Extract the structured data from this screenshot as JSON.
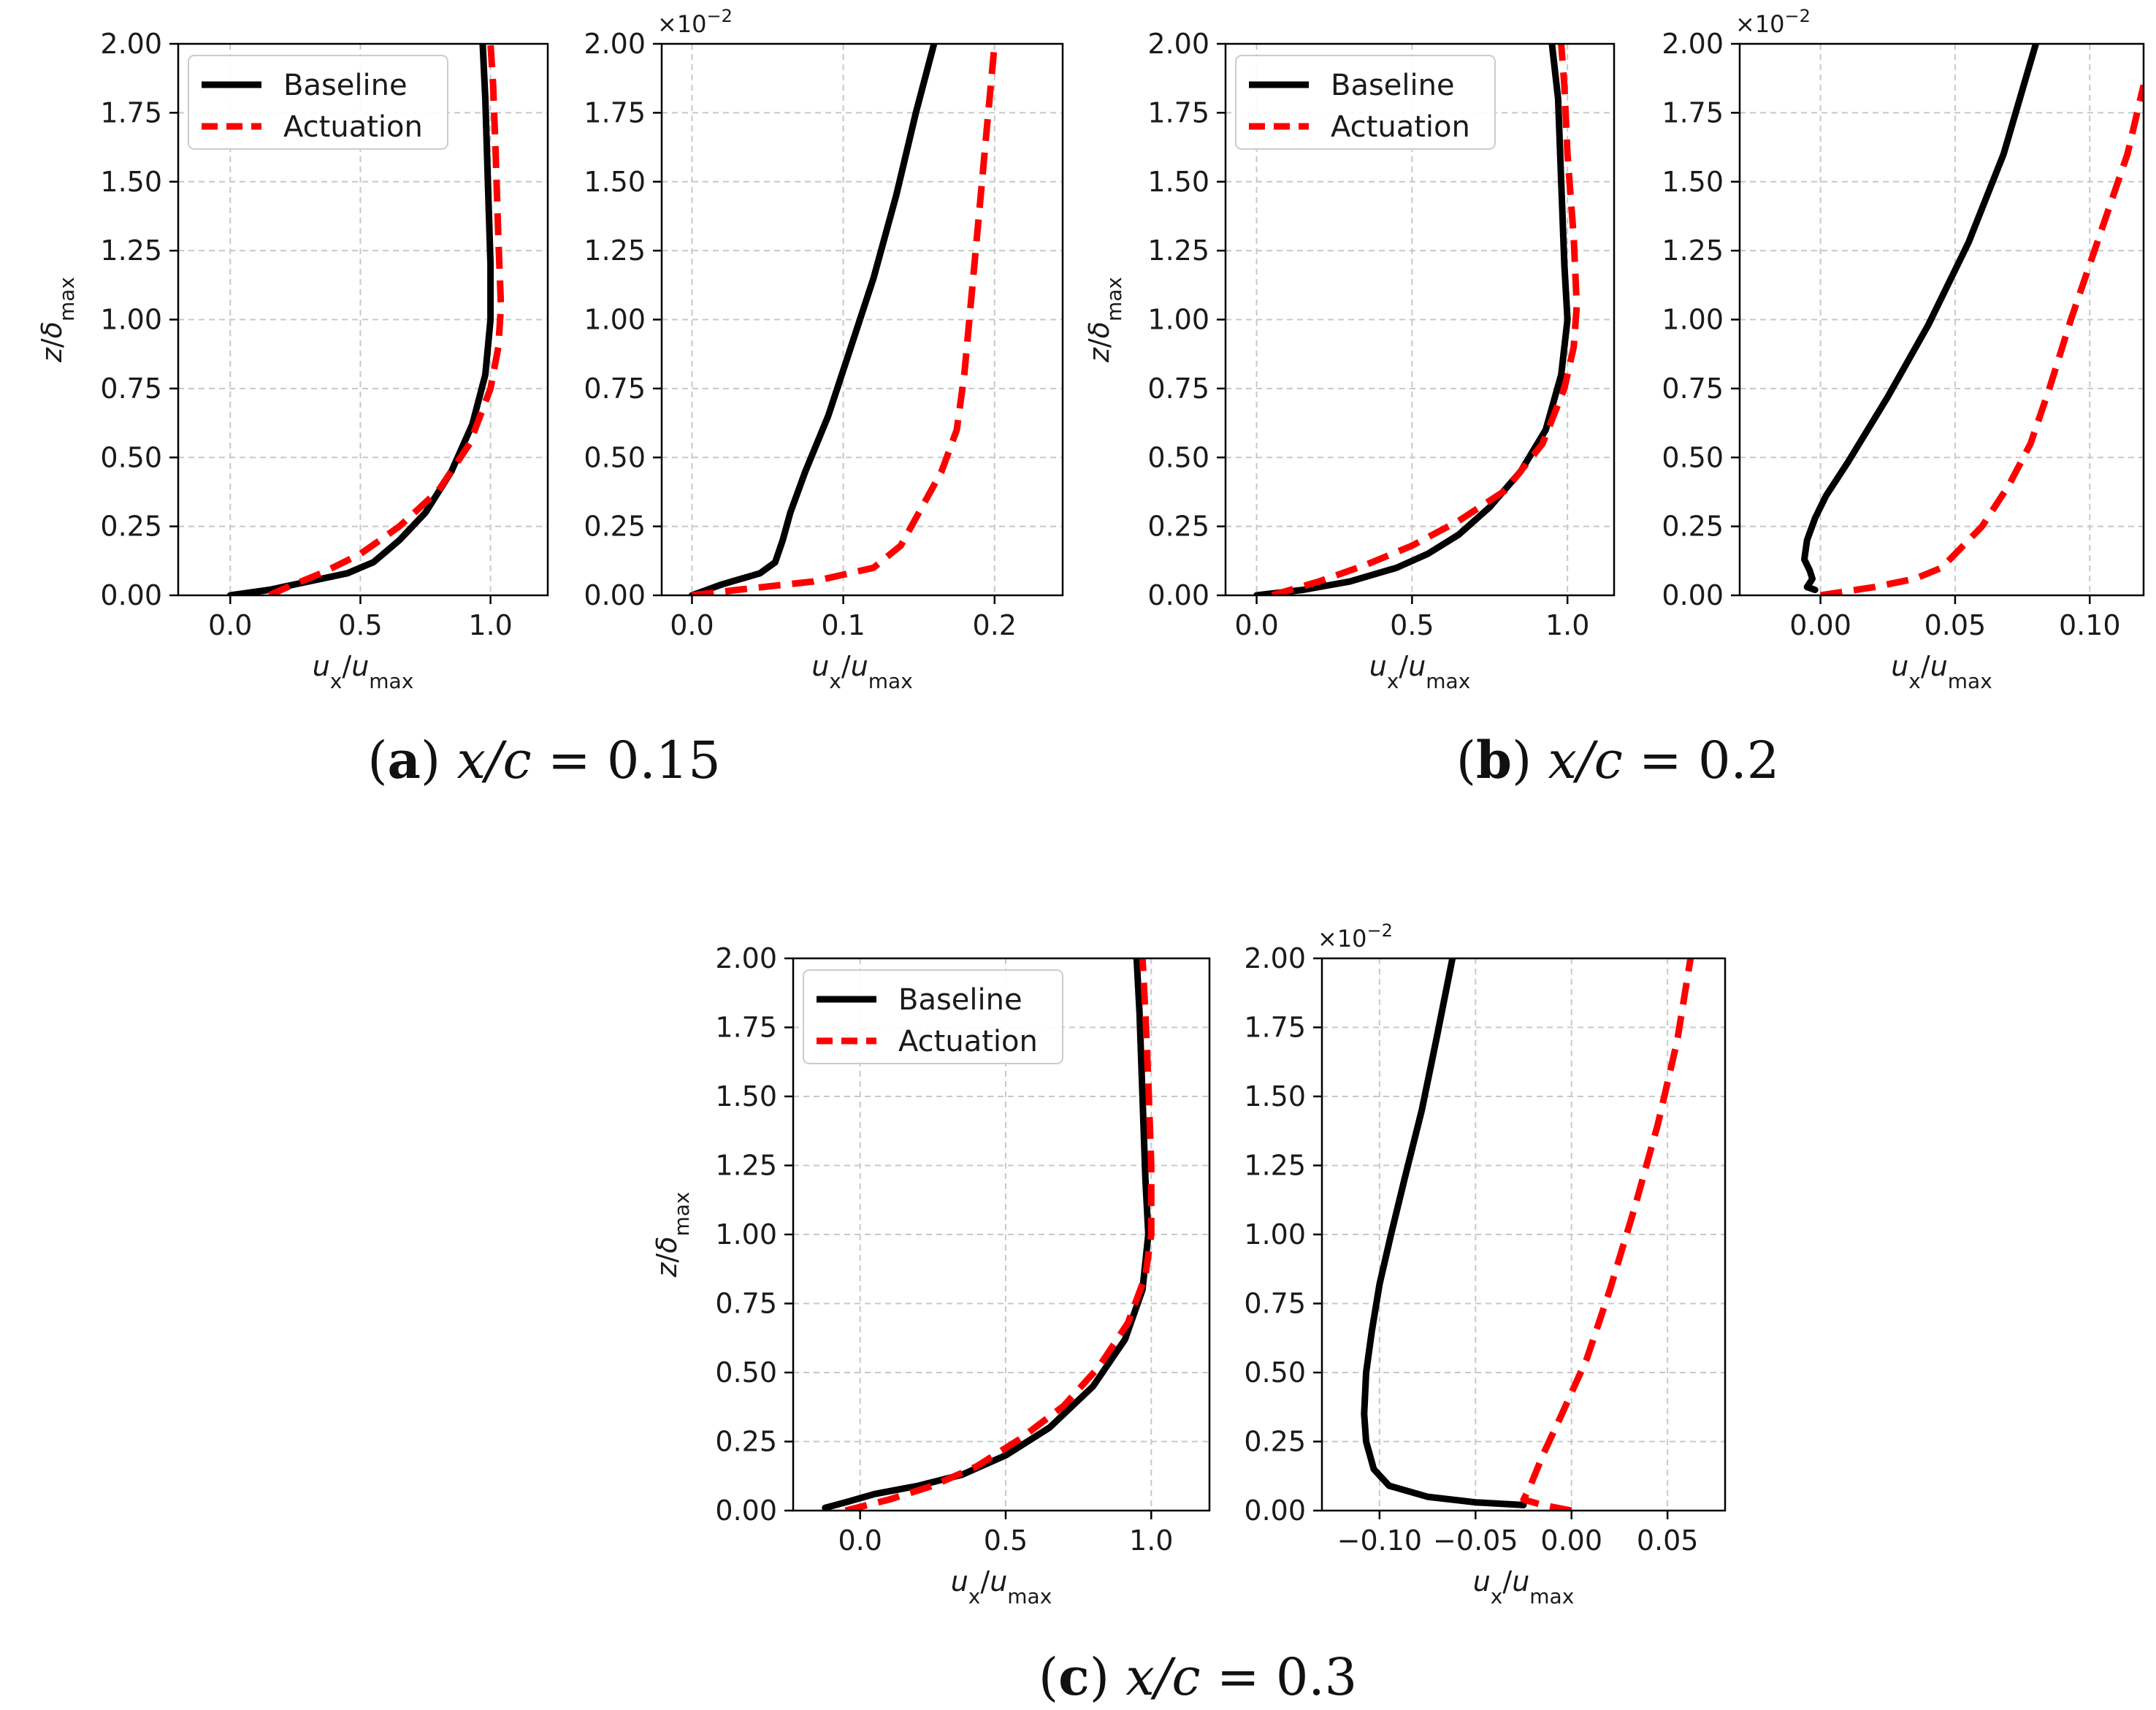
{
  "colors": {
    "baseline": "#000000",
    "actuation": "#ff0000",
    "grid": "#c8c8c8",
    "frame": "#000000"
  },
  "legend_entries": [
    "Baseline",
    "Actuation"
  ],
  "sci_multiplier": {
    "base": "×10",
    "exponent": "−2"
  },
  "panels": [
    {
      "letter": "a",
      "caption_prefix": "x/c",
      "caption_eq": "=",
      "caption_value": "0.15"
    },
    {
      "letter": "b",
      "caption_prefix": "x/c",
      "caption_eq": "=",
      "caption_value": "0.2"
    },
    {
      "letter": "c",
      "caption_prefix": "x/c",
      "caption_eq": "=",
      "caption_value": "0.3"
    }
  ],
  "chart_data": [
    {
      "id": "a-left",
      "panel": "a",
      "type": "line",
      "xlabel": "u_x/u_max",
      "ylabel": "z/δ_max",
      "xlim": [
        -0.2,
        1.22
      ],
      "ylim": [
        0,
        2
      ],
      "xticks": [
        {
          "v": 0,
          "label": "0.0"
        },
        {
          "v": 0.5,
          "label": "0.5"
        },
        {
          "v": 1.0,
          "label": "1.0"
        }
      ],
      "yticks": [
        {
          "v": 0,
          "label": "0.00"
        },
        {
          "v": 0.25,
          "label": "0.25"
        },
        {
          "v": 0.5,
          "label": "0.50"
        },
        {
          "v": 0.75,
          "label": "0.75"
        },
        {
          "v": 1.0,
          "label": "1.00"
        },
        {
          "v": 1.25,
          "label": "1.25"
        },
        {
          "v": 1.5,
          "label": "1.50"
        },
        {
          "v": 1.75,
          "label": "1.75"
        },
        {
          "v": 2.0,
          "label": "2.00"
        }
      ],
      "show_ylabel": true,
      "legend": "top-left",
      "sci": "",
      "series": [
        {
          "name": "Baseline",
          "x": [
            0.0,
            0.15,
            0.3,
            0.45,
            0.55,
            0.65,
            0.75,
            0.85,
            0.93,
            0.98,
            1.0,
            1.0,
            0.99,
            0.98,
            0.97
          ],
          "z": [
            0.0,
            0.02,
            0.05,
            0.08,
            0.12,
            0.2,
            0.3,
            0.45,
            0.62,
            0.8,
            1.0,
            1.2,
            1.5,
            1.8,
            2.0
          ]
        },
        {
          "name": "Actuation",
          "x": [
            0.15,
            0.22,
            0.35,
            0.5,
            0.65,
            0.8,
            0.92,
            1.0,
            1.03,
            1.04,
            1.03,
            1.02,
            1.01,
            1.0
          ],
          "z": [
            0.0,
            0.03,
            0.08,
            0.15,
            0.25,
            0.38,
            0.55,
            0.75,
            0.9,
            1.05,
            1.3,
            1.6,
            1.85,
            2.0
          ]
        }
      ]
    },
    {
      "id": "a-right",
      "panel": "a",
      "type": "line",
      "xlabel": "u_x/u_max",
      "ylabel": "",
      "xlim": [
        -0.02,
        0.245
      ],
      "ylim": [
        0,
        2
      ],
      "xticks": [
        {
          "v": 0,
          "label": "0.0"
        },
        {
          "v": 0.1,
          "label": "0.1"
        },
        {
          "v": 0.2,
          "label": "0.2"
        }
      ],
      "yticks": [
        {
          "v": 0,
          "label": "0.00"
        },
        {
          "v": 0.25,
          "label": "0.25"
        },
        {
          "v": 0.5,
          "label": "0.50"
        },
        {
          "v": 0.75,
          "label": "0.75"
        },
        {
          "v": 1.0,
          "label": "1.00"
        },
        {
          "v": 1.25,
          "label": "1.25"
        },
        {
          "v": 1.5,
          "label": "1.50"
        },
        {
          "v": 1.75,
          "label": "1.75"
        },
        {
          "v": 2.0,
          "label": "2.00"
        }
      ],
      "show_ylabel": false,
      "legend": "",
      "sci": "×10^-2",
      "series": [
        {
          "name": "Baseline",
          "x": [
            0.0,
            0.02,
            0.045,
            0.055,
            0.06,
            0.065,
            0.075,
            0.09,
            0.105,
            0.12,
            0.135,
            0.148,
            0.16
          ],
          "z": [
            0.0,
            0.04,
            0.08,
            0.12,
            0.2,
            0.3,
            0.45,
            0.65,
            0.9,
            1.15,
            1.45,
            1.75,
            2.0
          ]
        },
        {
          "name": "Actuation",
          "x": [
            0.0,
            0.03,
            0.08,
            0.12,
            0.138,
            0.15,
            0.165,
            0.175,
            0.18,
            0.185,
            0.19,
            0.195,
            0.2
          ],
          "z": [
            0.0,
            0.02,
            0.05,
            0.1,
            0.18,
            0.3,
            0.45,
            0.6,
            0.8,
            1.1,
            1.4,
            1.7,
            2.0
          ]
        }
      ]
    },
    {
      "id": "b-left",
      "panel": "b",
      "type": "line",
      "xlabel": "u_x/u_max",
      "ylabel": "z/δ_max",
      "xlim": [
        -0.1,
        1.15
      ],
      "ylim": [
        0,
        2
      ],
      "xticks": [
        {
          "v": 0,
          "label": "0.0"
        },
        {
          "v": 0.5,
          "label": "0.5"
        },
        {
          "v": 1.0,
          "label": "1.0"
        }
      ],
      "yticks": [
        {
          "v": 0,
          "label": "0.00"
        },
        {
          "v": 0.25,
          "label": "0.25"
        },
        {
          "v": 0.5,
          "label": "0.50"
        },
        {
          "v": 0.75,
          "label": "0.75"
        },
        {
          "v": 1.0,
          "label": "1.00"
        },
        {
          "v": 1.25,
          "label": "1.25"
        },
        {
          "v": 1.5,
          "label": "1.50"
        },
        {
          "v": 1.75,
          "label": "1.75"
        },
        {
          "v": 2.0,
          "label": "2.00"
        }
      ],
      "show_ylabel": true,
      "legend": "top-left",
      "sci": "",
      "series": [
        {
          "name": "Baseline",
          "x": [
            0.0,
            0.15,
            0.3,
            0.45,
            0.55,
            0.65,
            0.75,
            0.85,
            0.93,
            0.98,
            1.0,
            0.99,
            0.98,
            0.97,
            0.95
          ],
          "z": [
            0.0,
            0.02,
            0.05,
            0.1,
            0.15,
            0.22,
            0.32,
            0.45,
            0.6,
            0.8,
            1.0,
            1.2,
            1.5,
            1.8,
            2.0
          ]
        },
        {
          "name": "Actuation",
          "x": [
            0.05,
            0.2,
            0.35,
            0.5,
            0.65,
            0.8,
            0.92,
            0.99,
            1.02,
            1.03,
            1.02,
            1.0,
            0.99,
            0.98
          ],
          "z": [
            0.0,
            0.05,
            0.11,
            0.18,
            0.27,
            0.38,
            0.55,
            0.75,
            0.9,
            1.05,
            1.3,
            1.6,
            1.85,
            2.0
          ]
        }
      ]
    },
    {
      "id": "b-right",
      "panel": "b",
      "type": "line",
      "xlabel": "u_x/u_max",
      "ylabel": "",
      "xlim": [
        -0.03,
        0.12
      ],
      "ylim": [
        0,
        2
      ],
      "xticks": [
        {
          "v": 0,
          "label": "0.00"
        },
        {
          "v": 0.05,
          "label": "0.05"
        },
        {
          "v": 0.1,
          "label": "0.10"
        }
      ],
      "yticks": [
        {
          "v": 0,
          "label": "0.00"
        },
        {
          "v": 0.25,
          "label": "0.25"
        },
        {
          "v": 0.5,
          "label": "0.50"
        },
        {
          "v": 0.75,
          "label": "0.75"
        },
        {
          "v": 1.0,
          "label": "1.00"
        },
        {
          "v": 1.25,
          "label": "1.25"
        },
        {
          "v": 1.5,
          "label": "1.50"
        },
        {
          "v": 1.75,
          "label": "1.75"
        },
        {
          "v": 2.0,
          "label": "2.00"
        }
      ],
      "show_ylabel": false,
      "legend": "",
      "sci": "×10^-2",
      "series": [
        {
          "name": "Baseline",
          "x": [
            -0.002,
            -0.005,
            -0.003,
            -0.004,
            -0.006,
            -0.005,
            -0.002,
            0.002,
            0.01,
            0.025,
            0.04,
            0.055,
            0.068,
            0.08
          ],
          "z": [
            0.02,
            0.03,
            0.06,
            0.09,
            0.13,
            0.2,
            0.28,
            0.36,
            0.48,
            0.72,
            0.98,
            1.28,
            1.6,
            2.0
          ]
        },
        {
          "name": "Actuation",
          "x": [
            0.0,
            0.02,
            0.035,
            0.045,
            0.06,
            0.07,
            0.078,
            0.085,
            0.093,
            0.1,
            0.107,
            0.114,
            0.12
          ],
          "z": [
            0.0,
            0.03,
            0.06,
            0.1,
            0.25,
            0.4,
            0.55,
            0.75,
            1.0,
            1.2,
            1.4,
            1.6,
            1.85
          ]
        }
      ]
    },
    {
      "id": "c-left",
      "panel": "c",
      "type": "line",
      "xlabel": "u_x/u_max",
      "ylabel": "z/δ_max",
      "xlim": [
        -0.23,
        1.2
      ],
      "ylim": [
        0,
        2
      ],
      "xticks": [
        {
          "v": 0,
          "label": "0.0"
        },
        {
          "v": 0.5,
          "label": "0.5"
        },
        {
          "v": 1.0,
          "label": "1.0"
        }
      ],
      "yticks": [
        {
          "v": 0,
          "label": "0.00"
        },
        {
          "v": 0.25,
          "label": "0.25"
        },
        {
          "v": 0.5,
          "label": "0.50"
        },
        {
          "v": 0.75,
          "label": "0.75"
        },
        {
          "v": 1.0,
          "label": "1.00"
        },
        {
          "v": 1.25,
          "label": "1.25"
        },
        {
          "v": 1.5,
          "label": "1.50"
        },
        {
          "v": 1.75,
          "label": "1.75"
        },
        {
          "v": 2.0,
          "label": "2.00"
        }
      ],
      "show_ylabel": true,
      "legend": "top-left",
      "sci": "",
      "series": [
        {
          "name": "Baseline",
          "x": [
            -0.12,
            -0.05,
            0.05,
            0.2,
            0.35,
            0.5,
            0.65,
            0.8,
            0.91,
            0.97,
            0.99,
            0.98,
            0.97,
            0.96,
            0.95
          ],
          "z": [
            0.01,
            0.03,
            0.06,
            0.09,
            0.13,
            0.2,
            0.3,
            0.45,
            0.62,
            0.8,
            1.0,
            1.2,
            1.5,
            1.8,
            2.0
          ]
        },
        {
          "name": "Actuation",
          "x": [
            -0.05,
            0.1,
            0.25,
            0.4,
            0.55,
            0.7,
            0.82,
            0.92,
            0.98,
            1.0,
            1.0,
            0.99,
            0.98,
            0.97
          ],
          "z": [
            0.0,
            0.04,
            0.09,
            0.16,
            0.26,
            0.38,
            0.52,
            0.68,
            0.85,
            1.0,
            1.25,
            1.55,
            1.8,
            2.0
          ]
        }
      ]
    },
    {
      "id": "c-right",
      "panel": "c",
      "type": "line",
      "xlabel": "u_x/u_max",
      "ylabel": "",
      "xlim": [
        -0.13,
        0.08
      ],
      "ylim": [
        0,
        2
      ],
      "xticks": [
        {
          "v": -0.1,
          "label": "−0.10"
        },
        {
          "v": -0.05,
          "label": "−0.05"
        },
        {
          "v": 0,
          "label": "0.00"
        },
        {
          "v": 0.05,
          "label": "0.05"
        }
      ],
      "yticks": [
        {
          "v": 0,
          "label": "0.00"
        },
        {
          "v": 0.25,
          "label": "0.25"
        },
        {
          "v": 0.5,
          "label": "0.50"
        },
        {
          "v": 0.75,
          "label": "0.75"
        },
        {
          "v": 1.0,
          "label": "1.00"
        },
        {
          "v": 1.25,
          "label": "1.25"
        },
        {
          "v": 1.5,
          "label": "1.50"
        },
        {
          "v": 1.75,
          "label": "1.75"
        },
        {
          "v": 2.0,
          "label": "2.00"
        }
      ],
      "show_ylabel": false,
      "legend": "",
      "sci": "×10^-2",
      "series": [
        {
          "name": "Baseline",
          "x": [
            -0.025,
            -0.05,
            -0.075,
            -0.095,
            -0.103,
            -0.107,
            -0.108,
            -0.107,
            -0.104,
            -0.1,
            -0.094,
            -0.087,
            -0.078,
            -0.07,
            -0.062
          ],
          "z": [
            0.02,
            0.03,
            0.05,
            0.09,
            0.15,
            0.25,
            0.35,
            0.5,
            0.65,
            0.82,
            1.0,
            1.2,
            1.45,
            1.72,
            2.0
          ]
        },
        {
          "name": "Actuation",
          "x": [
            0.0,
            -0.015,
            -0.025,
            -0.022,
            -0.015,
            -0.005,
            0.008,
            0.02,
            0.033,
            0.045,
            0.055,
            0.062
          ],
          "z": [
            0.0,
            0.02,
            0.04,
            0.08,
            0.2,
            0.35,
            0.55,
            0.8,
            1.1,
            1.4,
            1.7,
            2.0
          ]
        }
      ]
    }
  ]
}
